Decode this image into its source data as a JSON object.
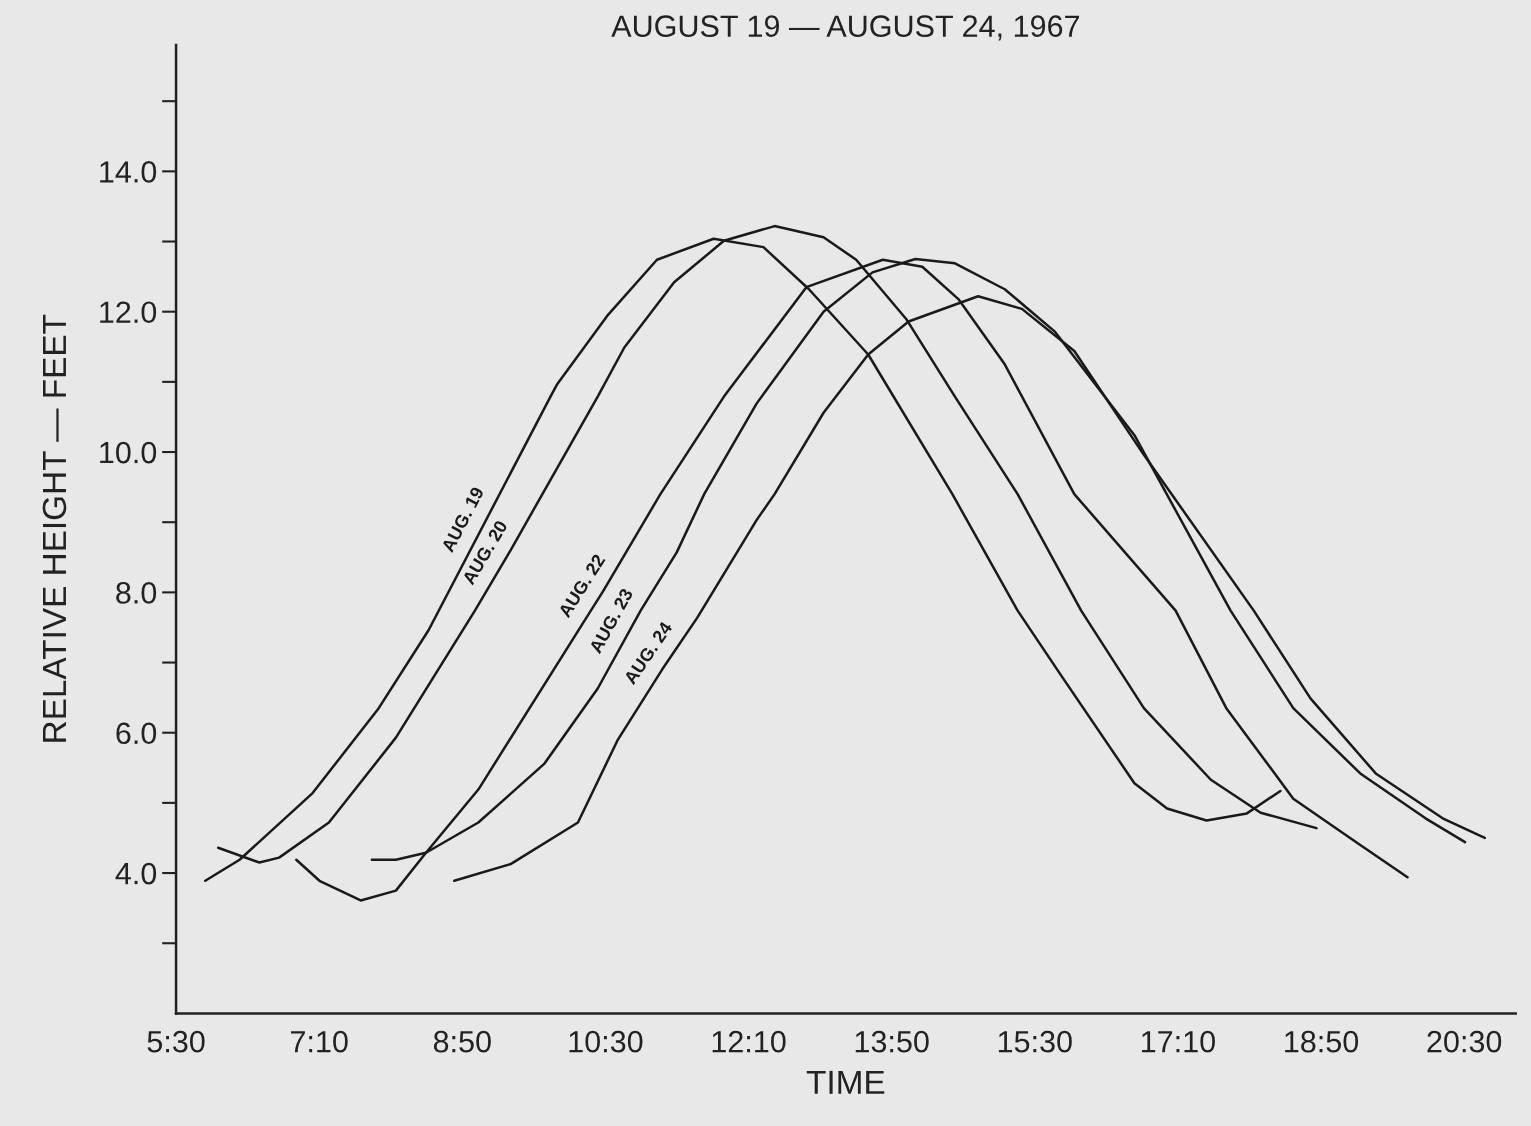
{
  "chart_data": {
    "type": "line",
    "title": "AUGUST 19 — AUGUST 24, 1967",
    "xlabel": "TIME",
    "ylabel": "RELATIVE HEIGHT — FEET",
    "xlim": [
      5.5,
      21.1
    ],
    "ylim": [
      2.0,
      15.8
    ],
    "xticks": [
      {
        "value": 5.5,
        "label": "5:30"
      },
      {
        "value": 7.1667,
        "label": "7:10"
      },
      {
        "value": 8.8333,
        "label": "8:50"
      },
      {
        "value": 10.5,
        "label": "10:30"
      },
      {
        "value": 12.1667,
        "label": "12:10"
      },
      {
        "value": 13.8333,
        "label": "13:50"
      },
      {
        "value": 15.5,
        "label": "15:30"
      },
      {
        "value": 17.1667,
        "label": "17:10"
      },
      {
        "value": 18.8333,
        "label": "18:50"
      },
      {
        "value": 20.5,
        "label": "20:30"
      }
    ],
    "yticks": [
      {
        "value": 3,
        "label": null
      },
      {
        "value": 4,
        "label": "4.0"
      },
      {
        "value": 5,
        "label": null
      },
      {
        "value": 6,
        "label": "6.0"
      },
      {
        "value": 7,
        "label": null
      },
      {
        "value": 8,
        "label": "8.0"
      },
      {
        "value": 9,
        "label": null
      },
      {
        "value": 10,
        "label": "10.0"
      },
      {
        "value": 11,
        "label": null
      },
      {
        "value": 12,
        "label": "12.0"
      },
      {
        "value": 13,
        "label": null
      },
      {
        "value": 14,
        "label": "14.0"
      },
      {
        "value": 15,
        "label": null
      }
    ],
    "grid": false,
    "legend": false,
    "marker": "none",
    "line_style": "solid",
    "series": [
      {
        "name": "AUG. 19",
        "color": "#1a1a1a",
        "x": [
          5.84,
          6.24,
          7.09,
          7.86,
          8.44,
          9.86,
          9.94,
          10.52,
          11.1,
          11.76,
          12.34,
          12.87,
          13.56,
          14.54,
          15.3,
          15.81,
          16.66,
          17.04,
          17.5,
          17.97,
          18.36
        ],
        "values": [
          3.89,
          4.19,
          5.14,
          6.35,
          7.46,
          10.79,
          10.97,
          11.94,
          12.74,
          13.04,
          12.92,
          12.32,
          11.39,
          9.4,
          7.74,
          6.81,
          5.28,
          4.92,
          4.75,
          4.85,
          5.17
        ]
      },
      {
        "name": "AUG. 20",
        "color": "#1a1a1a",
        "x": [
          5.99,
          6.47,
          6.7,
          7.28,
          8.06,
          8.98,
          9.4,
          10.41,
          10.72,
          11.3,
          11.88,
          12.47,
          13.04,
          13.42,
          14.0,
          14.57,
          15.3,
          16.04,
          16.77,
          17.55,
          18.13,
          18.78
        ],
        "values": [
          4.36,
          4.15,
          4.22,
          4.72,
          5.93,
          7.74,
          8.61,
          10.79,
          11.49,
          12.42,
          13.01,
          13.22,
          13.06,
          12.74,
          11.9,
          10.79,
          9.4,
          7.74,
          6.35,
          5.33,
          4.86,
          4.64
        ]
      },
      {
        "name": "AUG. 22",
        "color": "#1a1a1a",
        "x": [
          6.9,
          7.17,
          7.65,
          8.06,
          8.41,
          9.02,
          10.33,
          10.47,
          11.14,
          11.88,
          12.84,
          13.73,
          14.19,
          14.61,
          15.15,
          15.96,
          17.14,
          17.73,
          18.51,
          19.29,
          19.84
        ],
        "values": [
          4.19,
          3.89,
          3.61,
          3.75,
          4.29,
          5.19,
          7.74,
          8.01,
          9.4,
          10.79,
          12.35,
          12.74,
          12.64,
          12.18,
          11.25,
          9.4,
          7.74,
          6.35,
          5.06,
          4.4,
          3.94
        ]
      },
      {
        "name": "AUG. 23",
        "color": "#1a1a1a",
        "x": [
          7.78,
          8.06,
          8.41,
          9.02,
          9.79,
          10.41,
          10.91,
          11.33,
          11.65,
          12.26,
          13.04,
          13.61,
          14.11,
          14.57,
          15.15,
          15.73,
          16.66,
          17.78,
          18.51,
          19.29,
          20.05,
          20.51
        ],
        "values": [
          4.19,
          4.19,
          4.29,
          4.72,
          5.56,
          6.63,
          7.74,
          8.57,
          9.4,
          10.69,
          12.0,
          12.56,
          12.75,
          12.69,
          12.32,
          11.72,
          10.24,
          7.74,
          6.35,
          5.42,
          4.78,
          4.44
        ]
      },
      {
        "name": "AUG. 24",
        "color": "#1a1a1a",
        "x": [
          8.74,
          9.4,
          10.18,
          10.64,
          11.16,
          11.57,
          12.26,
          12.47,
          13.04,
          13.56,
          14.03,
          14.84,
          15.35,
          15.96,
          16.77,
          18.05,
          18.71,
          19.47,
          20.25,
          20.74
        ],
        "values": [
          3.89,
          4.13,
          4.72,
          5.89,
          6.9,
          7.64,
          9.03,
          9.4,
          10.56,
          11.39,
          11.86,
          12.22,
          12.04,
          11.44,
          9.96,
          7.74,
          6.49,
          5.42,
          4.78,
          4.5
        ]
      }
    ]
  }
}
